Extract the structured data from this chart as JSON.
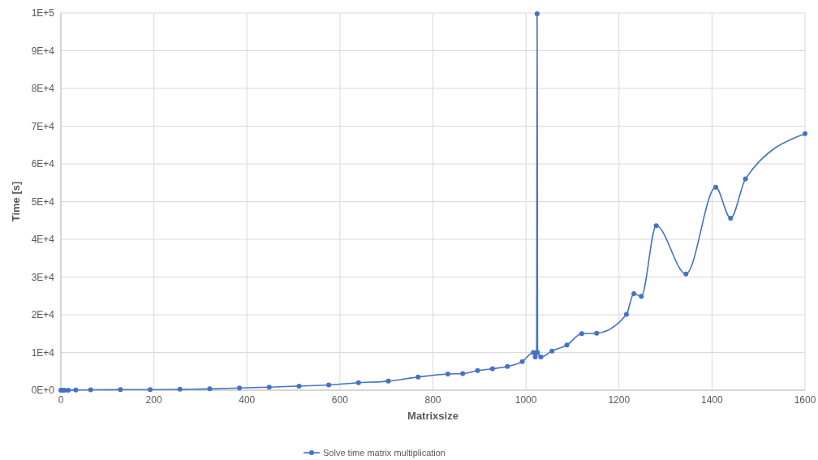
{
  "chart_data": {
    "type": "line",
    "xlabel": "Matrixsize",
    "ylabel": "Time  [s]",
    "x": [
      0,
      4,
      8,
      16,
      32,
      64,
      128,
      192,
      256,
      320,
      384,
      448,
      512,
      576,
      640,
      704,
      768,
      832,
      864,
      896,
      928,
      960,
      992,
      1016,
      1020,
      1023,
      1024,
      1025,
      1032,
      1056,
      1088,
      1120,
      1152,
      1216,
      1232,
      1248,
      1280,
      1344,
      1408,
      1440,
      1472,
      1600
    ],
    "series": [
      {
        "name": "Solve time matrix multiplication",
        "color": "#4472c4",
        "values": [
          0,
          0,
          0,
          0,
          50,
          100,
          150,
          150,
          250,
          350,
          600,
          800,
          1100,
          1400,
          2000,
          2400,
          3500,
          4300,
          4400,
          5200,
          5700,
          6300,
          7600,
          10000,
          8800,
          10000,
          99800,
          10000,
          8800,
          10400,
          12000,
          15000,
          15100,
          20100,
          25600,
          24900,
          43600,
          30800,
          53800,
          45600,
          56000,
          68000
        ]
      }
    ],
    "xlim": [
      0,
      1600
    ],
    "xticks": [
      0,
      200,
      400,
      600,
      800,
      1000,
      1200,
      1400,
      1600
    ],
    "ylim": [
      0,
      100000
    ],
    "yticks": [
      {
        "value": 0,
        "label": "0E+0"
      },
      {
        "value": 10000,
        "label": "1E+4"
      },
      {
        "value": 20000,
        "label": "2E+4"
      },
      {
        "value": 30000,
        "label": "3E+4"
      },
      {
        "value": 40000,
        "label": "4E+4"
      },
      {
        "value": 50000,
        "label": "5E+4"
      },
      {
        "value": 60000,
        "label": "6E+4"
      },
      {
        "value": 70000,
        "label": "7E+4"
      },
      {
        "value": 80000,
        "label": "8E+4"
      },
      {
        "value": 90000,
        "label": "9E+4"
      },
      {
        "value": 100000,
        "label": "1E+5"
      }
    ],
    "grid": true,
    "legend": "bottom",
    "marker": "circle",
    "line_style": "solid"
  }
}
